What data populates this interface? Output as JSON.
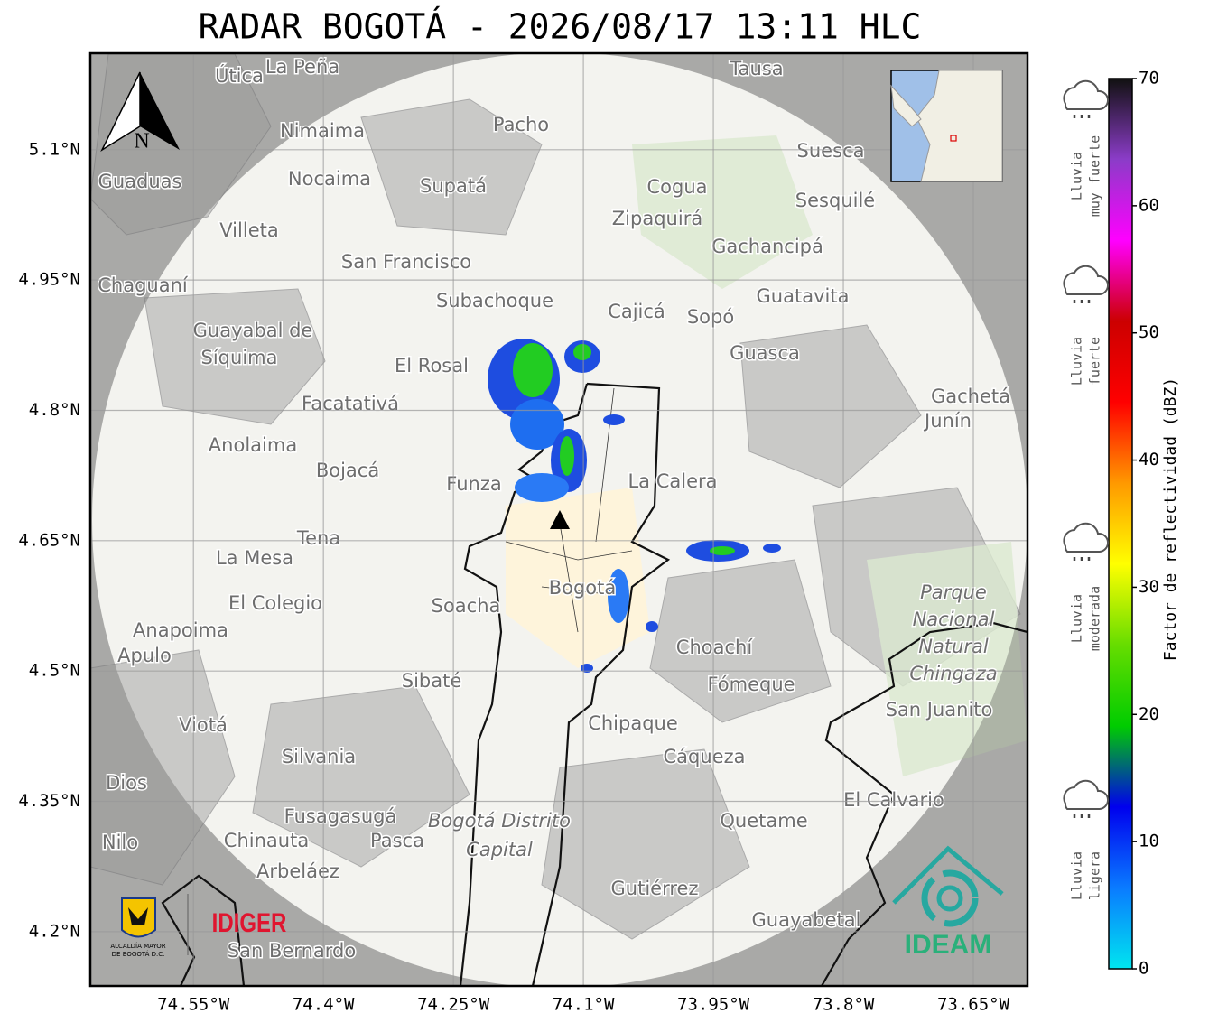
{
  "header": {
    "title": "RADAR BOGOTÁ - 2026/08/17 13:11 HLC"
  },
  "map": {
    "xlim": [
      -74.669,
      -73.5875
    ],
    "ylim": [
      4.1375,
      5.211
    ],
    "xticks": [
      {
        "value": -74.55,
        "label": "74.55°W"
      },
      {
        "value": -74.4,
        "label": "74.4°W"
      },
      {
        "value": -74.25,
        "label": "74.25°W"
      },
      {
        "value": -74.1,
        "label": "74.1°W"
      },
      {
        "value": -73.95,
        "label": "73.95°W"
      },
      {
        "value": -73.8,
        "label": "73.8°W"
      },
      {
        "value": -73.65,
        "label": "73.65°W"
      }
    ],
    "yticks": [
      {
        "value": 5.1,
        "label": "5.1°N"
      },
      {
        "value": 4.95,
        "label": "4.95°N"
      },
      {
        "value": 4.8,
        "label": "4.8°N"
      },
      {
        "value": 4.65,
        "label": "4.65°N"
      },
      {
        "value": 4.5,
        "label": "4.5°N"
      },
      {
        "value": 4.35,
        "label": "4.35°N"
      },
      {
        "value": 4.2,
        "label": "4.2°N"
      }
    ],
    "grid": true,
    "north": "N",
    "places": [
      "La Peña",
      "Útica",
      "Tausa",
      "Pacho",
      "Nimaima",
      "Nocaima",
      "Supatá",
      "Guaduas",
      "Cogua",
      "Suesca",
      "Sesquilé",
      "Zipaquirá",
      "Villeta",
      "Gachancipá",
      "San Francisco",
      "Chaguaní",
      "Guatavita",
      "Subachoque",
      "Cajicá",
      "Sopó",
      "Guayabal de",
      "Síquima",
      "Guasca",
      "El Rosal",
      "Facatativá",
      "Gachetá",
      "Junín",
      "Anolaima",
      "Bojacá",
      "Funza",
      "La Calera",
      "Tena",
      "La Mesa",
      "Bogotá",
      "El Colegio",
      "Soacha",
      "Anapoima",
      "Apulo",
      "Choachí",
      "Sibaté",
      "Fómeque",
      "San Juanito",
      "Viotá",
      "Chipaque",
      "Silvania",
      "Cáqueza",
      "Dios",
      "El Calvario",
      "Fusagasugá",
      "Quetame",
      "Pasca",
      "Chinauta",
      "Nilo",
      "Arbeláez",
      "Gutiérrez",
      "Guayabetal",
      "San Bernardo"
    ],
    "park": [
      "Parque",
      "Nacional",
      "Natural",
      "Chingaza"
    ],
    "district": [
      "Bogotá Distrito",
      "Capital"
    ],
    "logos": {
      "alcaldia": [
        "ALCALDÍA MAYOR",
        "DE BOGOTÁ D.C."
      ],
      "idiger": "IDIGER",
      "ideam": "IDEAM"
    }
  },
  "colorbar": {
    "label": "Factor de reflectividad (dBZ)",
    "vlim": [
      0,
      70
    ],
    "ticks": [
      0,
      10,
      20,
      30,
      40,
      50,
      60,
      70
    ],
    "colors": [
      "#00e5ef",
      "#0a7bff",
      "#0000ee",
      "#00cc00",
      "#66dd00",
      "#ffff00",
      "#ff9900",
      "#ff0000",
      "#cc0000",
      "#ff00ff",
      "#8b3cc8",
      "#111111"
    ]
  },
  "legend": [
    {
      "lines": [
        "Lluvia",
        "muy fuerte"
      ]
    },
    {
      "lines": [
        "Lluvia",
        "fuerte"
      ]
    },
    {
      "lines": [
        "Lluvia",
        "moderada"
      ]
    },
    {
      "lines": [
        "Lluvia",
        "ligera"
      ]
    }
  ]
}
